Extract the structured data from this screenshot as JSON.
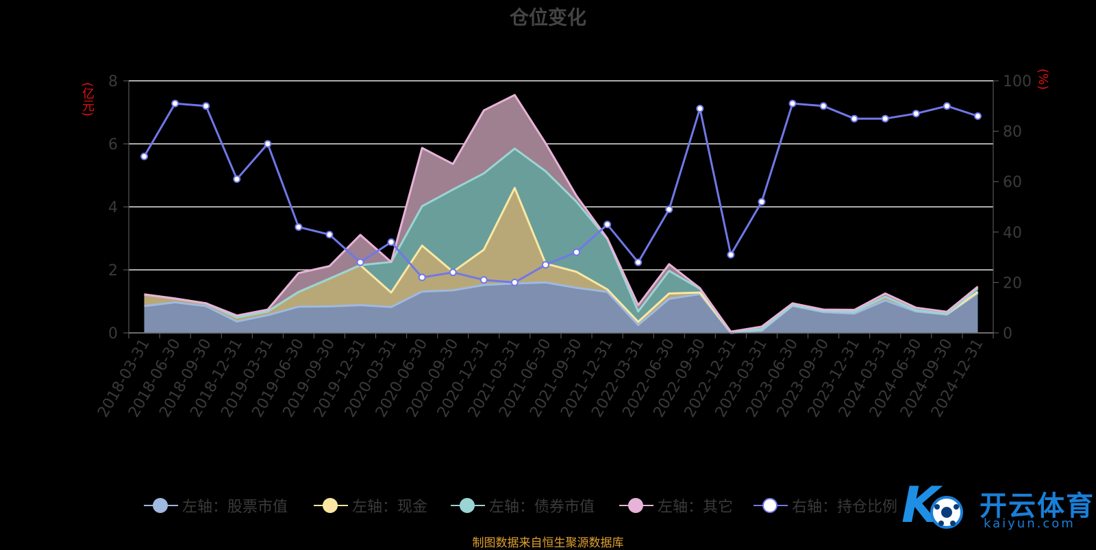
{
  "chart_data": {
    "type": "area",
    "title": "仓位变化",
    "left_axis_unit": "(亿元)",
    "right_axis_unit": "(%)",
    "ylim_left": [
      0,
      8
    ],
    "ylim_right": [
      0,
      100
    ],
    "left_ticks": [
      "0",
      "2",
      "4",
      "6",
      "8"
    ],
    "right_ticks": [
      "0",
      "20",
      "40",
      "60",
      "80",
      "100"
    ],
    "grid": true,
    "stacked": true,
    "x": [
      "2018-03-31",
      "2018-06-30",
      "2018-09-30",
      "2018-12-31",
      "2019-03-31",
      "2019-06-30",
      "2019-09-30",
      "2019-12-31",
      "2020-03-31",
      "2020-06-30",
      "2020-09-30",
      "2020-12-31",
      "2021-03-31",
      "2021-06-30",
      "2021-09-30",
      "2021-12-31",
      "2022-03-31",
      "2022-06-30",
      "2022-09-30",
      "2022-12-31",
      "2023-03-31",
      "2023-06-30",
      "2023-09-30",
      "2023-12-31",
      "2024-03-31",
      "2024-06-30",
      "2024-09-30",
      "2024-12-31"
    ],
    "series": [
      {
        "name": "左轴：股票市值",
        "axis": "left",
        "color": "#9fb9e0",
        "fill": "#7e8fb0",
        "values": [
          0.85,
          0.97,
          0.85,
          0.36,
          0.56,
          0.83,
          0.84,
          0.88,
          0.82,
          1.31,
          1.35,
          1.52,
          1.57,
          1.6,
          1.43,
          1.3,
          0.25,
          1.08,
          1.23,
          0.0,
          0.07,
          0.86,
          0.66,
          0.61,
          1.03,
          0.68,
          0.58,
          1.26
        ]
      },
      {
        "name": "左轴：现金",
        "axis": "left",
        "color": "#fbe7a3",
        "fill": "#b8a878",
        "values": [
          0.37,
          0.12,
          0.09,
          0.13,
          0.12,
          0.47,
          0.88,
          1.27,
          0.46,
          1.46,
          0.59,
          1.12,
          3.03,
          0.6,
          0.51,
          0.08,
          0.1,
          0.17,
          0.05,
          0.02,
          0.05,
          0.02,
          0.04,
          0.06,
          0.12,
          0.04,
          0.02,
          0.04
        ]
      },
      {
        "name": "左轴：债券市值",
        "axis": "left",
        "color": "#9ad5d4",
        "fill": "#6a9e9a",
        "values": [
          0,
          0,
          0,
          0,
          0,
          0,
          0,
          0,
          0.97,
          1.25,
          2.61,
          2.42,
          1.25,
          2.93,
          2.22,
          1.6,
          0.33,
          0.72,
          0.12,
          0,
          0,
          0,
          0,
          0,
          0,
          0,
          0,
          0.12
        ]
      },
      {
        "name": "左轴：其它",
        "axis": "left",
        "color": "#e8b3d8",
        "fill": "#9e8090",
        "values": [
          0,
          0,
          0,
          0.06,
          0.06,
          0.6,
          0.4,
          0.96,
          0,
          1.85,
          0.81,
          2.0,
          1.7,
          0.89,
          0.19,
          0.02,
          0.2,
          0.21,
          0.02,
          0.02,
          0.08,
          0.06,
          0.04,
          0.06,
          0.1,
          0.08,
          0.07,
          0.05
        ]
      },
      {
        "name": "右轴：持仓比例",
        "axis": "right",
        "color": "#7078e8",
        "fill": "none",
        "values": [
          70,
          91,
          90,
          61,
          75,
          42,
          39,
          28,
          36,
          22,
          24,
          21,
          20,
          27,
          32,
          43,
          28,
          49,
          89,
          31,
          52,
          91,
          90,
          85,
          85,
          87,
          90,
          86
        ]
      }
    ]
  },
  "footer": {
    "source": "制图数据来自恒生聚源数据库"
  },
  "watermark": {
    "text": "开云体育",
    "sub": "kaiyun.com"
  }
}
